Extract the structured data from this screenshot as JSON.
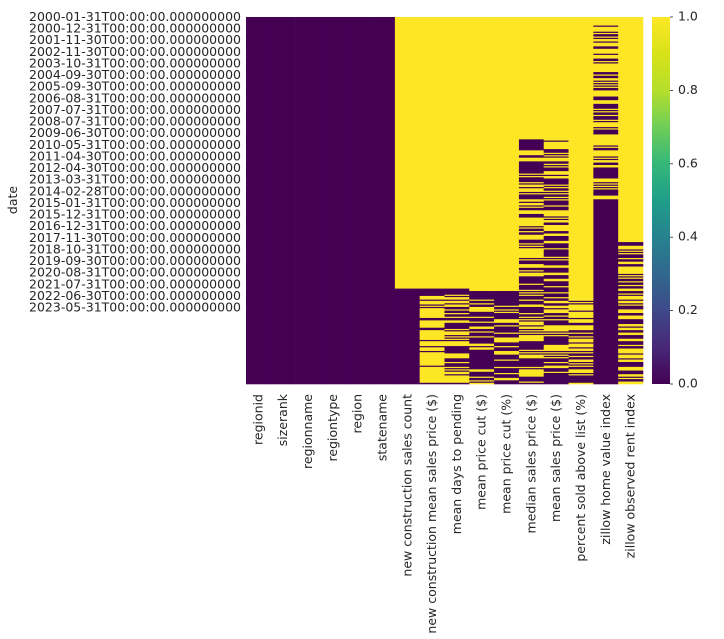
{
  "chart_data": {
    "type": "heatmap",
    "title": "",
    "xlabel": "",
    "ylabel": "date",
    "colormap": "viridis",
    "colors": {
      "low": "#440154",
      "high": "#fde725"
    },
    "columns": [
      "regionid",
      "sizerank",
      "regionname",
      "regiontype",
      "region",
      "statename",
      "new construction sales count",
      "new construction mean sales price ($)",
      "mean days to pending",
      "mean price cut ($)",
      "mean price cut (%)",
      "median sales price ($)",
      "mean sales price ($)",
      "percent sold above list (%)",
      "zillow home value index",
      "zillow observed rent index"
    ],
    "y_tick_labels": [
      "2000-01-31T00:00:00.000000000",
      "2000-12-31T00:00:00.000000000",
      "2001-11-30T00:00:00.000000000",
      "2002-11-30T00:00:00.000000000",
      "2003-10-31T00:00:00.000000000",
      "2004-09-30T00:00:00.000000000",
      "2005-09-30T00:00:00.000000000",
      "2006-08-31T00:00:00.000000000",
      "2007-07-31T00:00:00.000000000",
      "2008-07-31T00:00:00.000000000",
      "2009-06-30T00:00:00.000000000",
      "2010-05-31T00:00:00.000000000",
      "2011-04-30T00:00:00.000000000",
      "2012-04-30T00:00:00.000000000",
      "2013-03-31T00:00:00.000000000",
      "2014-02-28T00:00:00.000000000",
      "2015-01-31T00:00:00.000000000",
      "2015-12-31T00:00:00.000000000",
      "2016-12-31T00:00:00.000000000",
      "2017-11-30T00:00:00.000000000",
      "2018-10-31T00:00:00.000000000",
      "2019-09-30T00:00:00.000000000",
      "2020-08-31T00:00:00.000000000",
      "2021-07-31T00:00:00.000000000",
      "2022-06-30T00:00:00.000000000",
      "2023-05-31T00:00:00.000000000"
    ],
    "rows_total": 300,
    "column_patterns": [
      {
        "segments": [
          [
            0,
            300,
            0
          ]
        ]
      },
      {
        "segments": [
          [
            0,
            300,
            0
          ]
        ]
      },
      {
        "segments": [
          [
            0,
            300,
            0
          ]
        ]
      },
      {
        "segments": [
          [
            0,
            300,
            0
          ]
        ]
      },
      {
        "segments": [
          [
            0,
            300,
            0
          ]
        ]
      },
      {
        "segments": [
          [
            0,
            300,
            0
          ]
        ]
      },
      {
        "segments": [
          [
            0,
            222,
            1
          ],
          [
            222,
            300,
            0
          ]
        ]
      },
      {
        "segments": [
          [
            0,
            222,
            1
          ],
          [
            222,
            228,
            0
          ],
          [
            228,
            300,
            "mostly_1"
          ]
        ]
      },
      {
        "segments": [
          [
            0,
            222,
            1
          ],
          [
            222,
            225,
            0
          ],
          [
            225,
            300,
            "mixed"
          ]
        ]
      },
      {
        "segments": [
          [
            0,
            224,
            1
          ],
          [
            224,
            300,
            "mostly_0"
          ]
        ]
      },
      {
        "segments": [
          [
            0,
            224,
            1
          ],
          [
            224,
            300,
            "mostly_0"
          ]
        ]
      },
      {
        "segments": [
          [
            0,
            100,
            1
          ],
          [
            100,
            300,
            "mixed_dark"
          ]
        ]
      },
      {
        "segments": [
          [
            0,
            100,
            1
          ],
          [
            100,
            300,
            "mixed_dark"
          ]
        ]
      },
      {
        "segments": [
          [
            0,
            224,
            1
          ],
          [
            224,
            300,
            "mixed"
          ]
        ]
      },
      {
        "segments": [
          [
            0,
            150,
            "mixed"
          ],
          [
            150,
            300,
            0
          ]
        ]
      },
      {
        "segments": [
          [
            0,
            184,
            1
          ],
          [
            184,
            300,
            "mixed"
          ]
        ]
      }
    ],
    "colorbar_ticks": [
      0.0,
      0.2,
      0.4,
      0.6,
      0.8,
      1.0
    ],
    "colorbar_tick_labels": [
      "0.0",
      "0.2",
      "0.4",
      "0.6",
      "0.8",
      "1.0"
    ],
    "vmin": 0.0,
    "vmax": 1.0
  }
}
